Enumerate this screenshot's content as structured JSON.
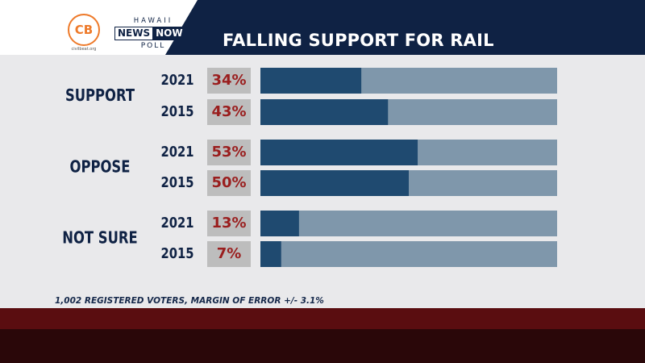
{
  "header": {
    "title": "FALLING SUPPORT FOR RAIL",
    "cb_logo_text": "CB",
    "cb_site": "civilbeat.org",
    "hawaii": "HAWAII",
    "news": "NEWS",
    "now": "NOW",
    "poll": "POLL"
  },
  "footnote": "1,002 REGISTERED VOTERS, MARGIN OF ERROR +/- 3.1%",
  "colors": {
    "bar_fill": "#1f4a70",
    "bar_track": "#7f97ab",
    "value_text": "#9a1e1e",
    "value_box": "#bdbdbd",
    "label_text": "#0f2244"
  },
  "chart_data": {
    "type": "bar",
    "title": "FALLING SUPPORT FOR RAIL",
    "xlim": [
      0,
      100
    ],
    "groups": [
      {
        "label": "SUPPORT",
        "rows": [
          {
            "year": "2021",
            "value": 34,
            "value_label": "34%"
          },
          {
            "year": "2015",
            "value": 43,
            "value_label": "43%"
          }
        ]
      },
      {
        "label": "OPPOSE",
        "rows": [
          {
            "year": "2021",
            "value": 53,
            "value_label": "53%"
          },
          {
            "year": "2015",
            "value": 50,
            "value_label": "50%"
          }
        ]
      },
      {
        "label": "NOT SURE",
        "rows": [
          {
            "year": "2021",
            "value": 13,
            "value_label": "13%"
          },
          {
            "year": "2015",
            "value": 7,
            "value_label": "7%"
          }
        ]
      }
    ]
  }
}
